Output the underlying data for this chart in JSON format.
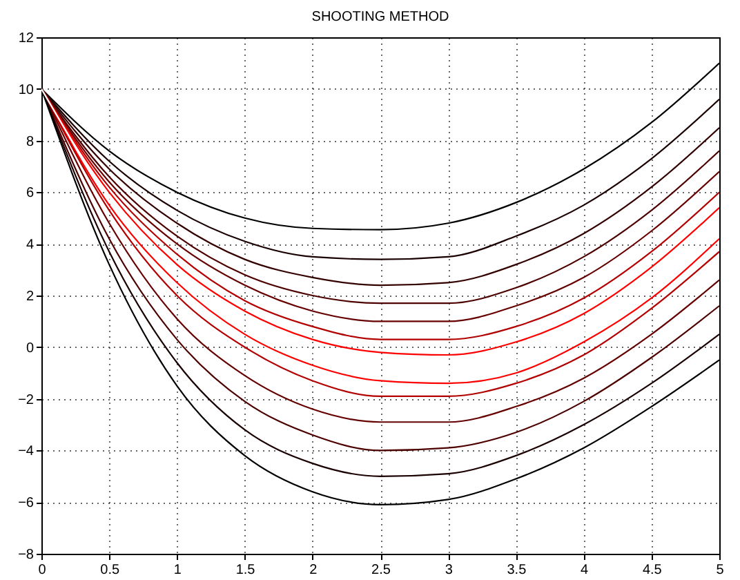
{
  "chart_data": {
    "type": "line",
    "title": "SHOOTING METHOD",
    "x": [
      0,
      0.5,
      1,
      1.5,
      2,
      2.5,
      3,
      3.5,
      4,
      4.5,
      5
    ],
    "xlim": [
      0,
      5
    ],
    "xticks": [
      0,
      0.5,
      1,
      1.5,
      2,
      2.5,
      3,
      3.5,
      4,
      4.5,
      5
    ],
    "ylim": [
      -8,
      12
    ],
    "yticks": [
      -8,
      -6,
      -4,
      -2,
      0,
      2,
      4,
      6,
      8,
      10,
      12
    ],
    "grid": true,
    "line_style": "solid",
    "series": [
      {
        "color": "#000000",
        "values": [
          10,
          7.6,
          6.0,
          5.0,
          4.6,
          4.55,
          4.8,
          5.6,
          6.9,
          8.7,
          11
        ]
      },
      {
        "color": "#1a0000",
        "values": [
          10,
          7.2,
          5.3,
          4.1,
          3.5,
          3.4,
          3.5,
          4.3,
          5.5,
          7.3,
          9.6
        ]
      },
      {
        "color": "#330000",
        "values": [
          10,
          6.9,
          4.8,
          3.4,
          2.7,
          2.4,
          2.5,
          3.2,
          4.4,
          6.2,
          8.5
        ]
      },
      {
        "color": "#4d0000",
        "values": [
          10,
          6.6,
          4.3,
          2.8,
          2.0,
          1.7,
          1.7,
          2.3,
          3.5,
          5.3,
          7.6
        ]
      },
      {
        "color": "#660000",
        "values": [
          10,
          6.4,
          4.0,
          2.4,
          1.4,
          1.0,
          1.0,
          1.6,
          2.7,
          4.5,
          6.8
        ]
      },
      {
        "color": "#b30000",
        "values": [
          10,
          6.2,
          3.6,
          1.8,
          0.8,
          0.3,
          0.3,
          0.8,
          1.9,
          3.7,
          6.0
        ]
      },
      {
        "color": "#ff0000",
        "values": [
          10,
          6.0,
          3.2,
          1.4,
          0.3,
          -0.2,
          -0.3,
          0.2,
          1.3,
          3.1,
          5.4
        ]
      },
      {
        "color": "#ff0000",
        "values": [
          10,
          5.5,
          2.5,
          0.5,
          -0.7,
          -1.3,
          -1.4,
          -1.0,
          0.2,
          1.9,
          4.2
        ]
      },
      {
        "color": "#b30000",
        "values": [
          10,
          5.3,
          2.0,
          0,
          -1.3,
          -1.9,
          -1.9,
          -1.4,
          -0.3,
          1.5,
          3.7
        ]
      },
      {
        "color": "#660000",
        "values": [
          10,
          4.8,
          1.1,
          -1.1,
          -2.4,
          -2.9,
          -2.9,
          -2.3,
          -1.2,
          0.5,
          2.6
        ]
      },
      {
        "color": "#4d0000",
        "values": [
          10,
          4.2,
          0.3,
          -2.1,
          -3.4,
          -4.0,
          -3.9,
          -3.3,
          -2.1,
          -0.4,
          1.6
        ]
      },
      {
        "color": "#1a0000",
        "values": [
          10,
          3.7,
          -0.6,
          -3.2,
          -4.5,
          -5.0,
          -4.9,
          -4.2,
          -3.0,
          -1.4,
          0.5
        ]
      },
      {
        "color": "#000000",
        "values": [
          10,
          3.2,
          -1.5,
          -4.2,
          -5.6,
          -6.1,
          -5.9,
          -5.1,
          -3.9,
          -2.3,
          -0.5
        ]
      },
      {
        "color": "#ffffff",
        "values": [
          10,
          5.8,
          2.9,
          1.0,
          -0.2,
          -0.8,
          -0.9,
          -0.5,
          0.6,
          2.4,
          4.7
        ]
      }
    ]
  }
}
